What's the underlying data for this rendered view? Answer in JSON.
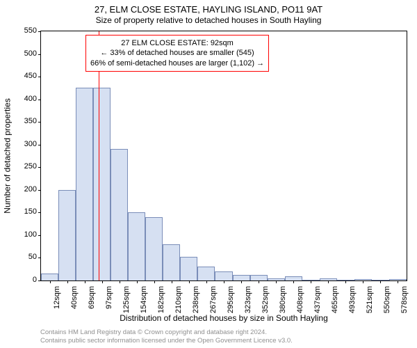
{
  "title": "27, ELM CLOSE ESTATE, HAYLING ISLAND, PO11 9AT",
  "subtitle": "Size of property relative to detached houses in South Hayling",
  "ylabel": "Number of detached properties",
  "xlabel": "Distribution of detached houses by size in South Hayling",
  "chart": {
    "type": "histogram",
    "ylim": [
      0,
      550
    ],
    "ytick_step": 50,
    "background_color": "#ffffff",
    "bar_fill": "#d6e0f2",
    "bar_stroke": "#7a8db8",
    "refline_color": "#ff0000",
    "refline_x_value": 92,
    "annotation_border": "#ff0000",
    "xtick_labels": [
      "12sqm",
      "40sqm",
      "69sqm",
      "97sqm",
      "125sqm",
      "154sqm",
      "182sqm",
      "210sqm",
      "238sqm",
      "267sqm",
      "295sqm",
      "323sqm",
      "352sqm",
      "380sqm",
      "408sqm",
      "437sqm",
      "465sqm",
      "493sqm",
      "521sqm",
      "550sqm",
      "578sqm"
    ],
    "bars": [
      15,
      200,
      425,
      425,
      290,
      150,
      140,
      80,
      52,
      30,
      20,
      12,
      12,
      5,
      10,
      0,
      5,
      0,
      3,
      0,
      3
    ]
  },
  "annotation": {
    "line1": "27 ELM CLOSE ESTATE: 92sqm",
    "line2": "← 33% of detached houses are smaller (545)",
    "line3": "66% of semi-detached houses are larger (1,102) →"
  },
  "footer": {
    "line1": "Contains HM Land Registry data © Crown copyright and database right 2024.",
    "line2": "Contains public sector information licensed under the Open Government Licence v3.0."
  },
  "styling": {
    "title_fontsize": 13,
    "subtitle_fontsize": 12,
    "axis_label_fontsize": 12,
    "tick_fontsize": 11,
    "annotation_fontsize": 11,
    "footer_fontsize": 9.5,
    "footer_color": "#909090"
  }
}
